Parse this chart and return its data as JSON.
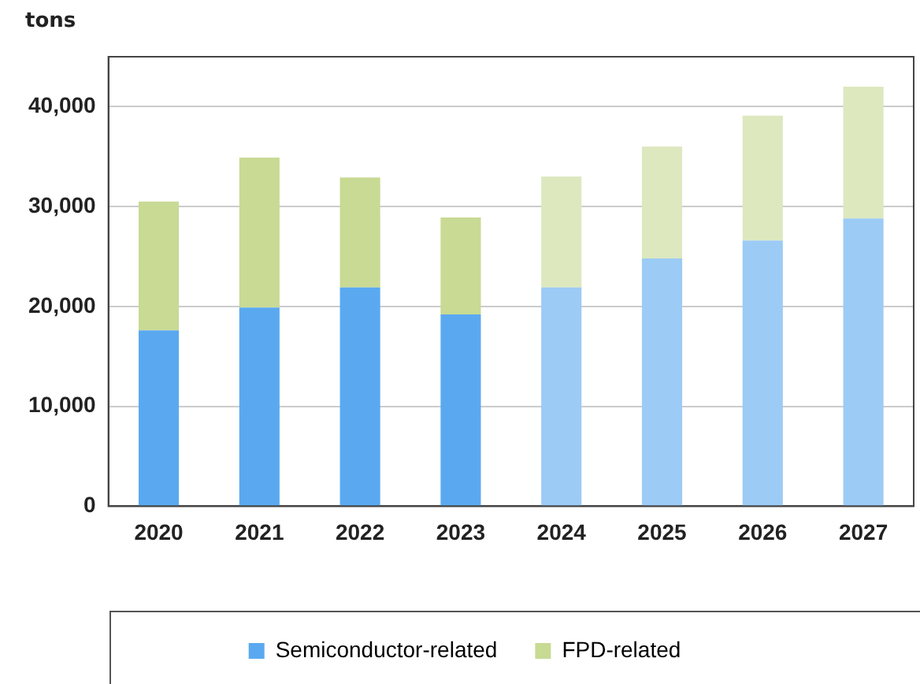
{
  "chart_data": {
    "type": "bar",
    "stacked": true,
    "ylabel": "tons",
    "categories": [
      "2020",
      "2021",
      "2022",
      "2023",
      "2024",
      "2025",
      "2026",
      "2027"
    ],
    "series": [
      {
        "name": "Semiconductor-related",
        "color": "#5aa9f0",
        "colors": [
          "#5aa9f0",
          "#5aa9f0",
          "#5aa9f0",
          "#5aa9f0",
          "#9ccbf5",
          "#9ccbf5",
          "#9ccbf5",
          "#9ccbf5"
        ],
        "values": [
          17600,
          19900,
          21900,
          19200,
          21900,
          24800,
          26600,
          28800
        ]
      },
      {
        "name": "FPD-related",
        "color": "#c8da94",
        "colors": [
          "#c8da94",
          "#c8da94",
          "#c8da94",
          "#c8da94",
          "#dde8bf",
          "#dde8bf",
          "#dde8bf",
          "#dde8bf"
        ],
        "values": [
          12900,
          15000,
          11000,
          9700,
          11100,
          11200,
          12500,
          13200
        ]
      }
    ],
    "ylim": [
      0,
      45000
    ],
    "yticks": [
      0,
      {
        "value": 10000,
        "label": "10,000"
      },
      {
        "value": 20000,
        "label": "20,000"
      },
      {
        "value": 30000,
        "label": "30,000"
      },
      {
        "value": 40000,
        "label": "40,000"
      }
    ],
    "grid": "y",
    "legend": "bottom"
  }
}
